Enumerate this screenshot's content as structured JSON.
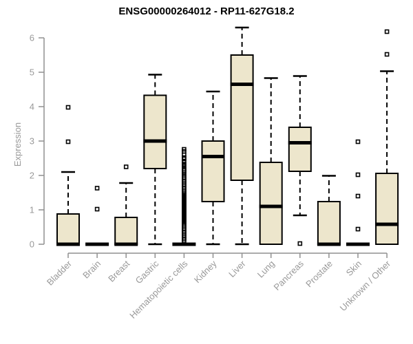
{
  "chart_data": {
    "type": "boxplot",
    "title": "ENSG00000264012 - RP11-627G18.2",
    "xlabel": "",
    "ylabel": "Expression",
    "ylim": [
      0,
      6
    ],
    "yticks": [
      0,
      1,
      2,
      3,
      4,
      5,
      6
    ],
    "grid": false,
    "legend": "none",
    "categories": [
      "Bladder",
      "Brain",
      "Breast",
      "Gastric",
      "Hematopoietic cells",
      "Kidney",
      "Liver",
      "Lung",
      "Pancreas",
      "Prostate",
      "Skin",
      "Unknown / Other"
    ],
    "series": [
      {
        "name": "Bladder",
        "whisker_low": 0,
        "q1": 0,
        "median": 0,
        "q3": 0.88,
        "whisker_high": 2.1,
        "outliers": [
          2.98,
          3.98
        ]
      },
      {
        "name": "Brain",
        "whisker_low": 0,
        "q1": 0,
        "median": 0,
        "q3": 0,
        "whisker_high": 0,
        "outliers": [
          1.02,
          1.63
        ]
      },
      {
        "name": "Breast",
        "whisker_low": 0,
        "q1": 0,
        "median": 0,
        "q3": 0.78,
        "whisker_high": 1.78,
        "outliers": [
          2.25
        ]
      },
      {
        "name": "Gastric",
        "whisker_low": 0,
        "q1": 2.2,
        "median": 3.0,
        "q3": 4.33,
        "whisker_high": 4.93,
        "outliers": []
      },
      {
        "name": "Hematopoietic cells",
        "whisker_low": 0,
        "q1": 0,
        "median": 0,
        "q3": 0,
        "whisker_high": 0,
        "outliers": [
          2.76,
          2.7,
          2.6,
          2.52,
          2.48,
          2.4,
          2.33,
          2.27,
          2.2,
          2.15,
          2.1,
          2.04,
          1.98,
          1.93,
          1.88,
          1.83,
          1.78,
          1.73,
          1.68,
          1.63,
          1.58,
          1.53,
          1.48,
          1.44,
          1.4,
          1.36,
          1.32,
          1.28,
          1.24,
          1.2,
          1.16,
          1.12,
          1.08,
          1.04,
          1.0,
          0.96,
          0.92,
          0.88,
          0.84,
          0.8,
          0.76,
          0.72,
          0.68,
          0.64,
          0.6,
          0.55,
          0.5,
          0.45,
          0.4,
          0.35,
          0.3,
          0.25,
          0.2,
          0.15,
          0.1
        ]
      },
      {
        "name": "Kidney",
        "whisker_low": 0,
        "q1": 1.24,
        "median": 2.55,
        "q3": 3.0,
        "whisker_high": 4.44,
        "outliers": []
      },
      {
        "name": "Liver",
        "whisker_low": 0,
        "q1": 1.86,
        "median": 4.65,
        "q3": 5.5,
        "whisker_high": 6.3,
        "outliers": []
      },
      {
        "name": "Lung",
        "whisker_low": 0,
        "q1": 0,
        "median": 1.1,
        "q3": 2.38,
        "whisker_high": 4.83,
        "outliers": []
      },
      {
        "name": "Pancreas",
        "whisker_low": 0.84,
        "q1": 2.12,
        "median": 2.95,
        "q3": 3.4,
        "whisker_high": 4.89,
        "outliers": [
          0.02
        ]
      },
      {
        "name": "Prostate",
        "whisker_low": 0,
        "q1": 0,
        "median": 0,
        "q3": 1.24,
        "whisker_high": 1.99,
        "outliers": []
      },
      {
        "name": "Skin",
        "whisker_low": 0,
        "q1": 0,
        "median": 0,
        "q3": 0,
        "whisker_high": 0,
        "outliers": [
          0.44,
          1.4,
          2.02,
          2.98
        ]
      },
      {
        "name": "Unknown / Other",
        "whisker_low": 0,
        "q1": 0,
        "median": 0.58,
        "q3": 2.06,
        "whisker_high": 5.03,
        "outliers": [
          5.52,
          6.18
        ]
      }
    ],
    "style": {
      "box_fill": "#ede6cc",
      "box_stroke": "#000000",
      "median_color": "#000000",
      "whisker_color": "#000000",
      "outlier_color": "#000000",
      "axis_color": "#8f8f8f",
      "label_color": "#999999",
      "title_color": "#000000",
      "background": "#ffffff"
    }
  }
}
